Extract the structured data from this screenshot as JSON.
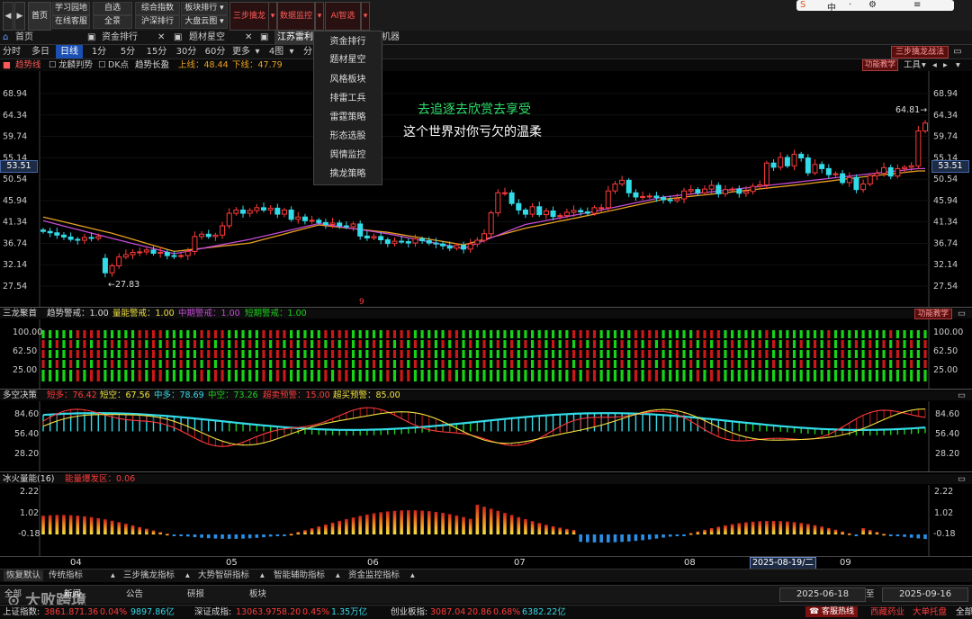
{
  "topbar": {
    "home_label": "首页",
    "buttons": [
      "学习园地",
      "自选",
      "综合指数",
      "板块排行",
      "在线客服",
      "全景",
      "沪深排行",
      "大盘云图"
    ],
    "three_step": "三步擒龙",
    "data_monitor": "数据监控",
    "ai_pick": "AI智选",
    "ime": [
      "中",
      "·",
      "⚙",
      "≡"
    ]
  },
  "tabs": [
    "首页",
    "资金排行",
    "题材星空",
    "江苏雷利",
    "机器"
  ],
  "menu_items": [
    "资金排行",
    "题材星空",
    "风格板块",
    "排雷工兵",
    "雷霆策略",
    "形态选股",
    "舆情监控",
    "擒龙策略"
  ],
  "right_badge": "三步擒龙战法",
  "periods": [
    "分时",
    "多日",
    "日线",
    "1分",
    "5分",
    "15分",
    "30分",
    "60分",
    "更多",
    "4图",
    "分"
  ],
  "func_teach": "功能教学",
  "tools": "工具",
  "main_legend": {
    "items": [
      "趋势线",
      "龙麟判势",
      "DK点",
      "趋势长盈"
    ],
    "upper_label": "上线：48.44",
    "lower_label": "下线：47.79"
  },
  "overlay_text": [
    "去追逐去欣赏去享受",
    "这个世界对你亏欠的温柔"
  ],
  "price_axis": [
    "68.94",
    "64.34",
    "59.74",
    "55.14",
    "50.54",
    "45.94",
    "41.34",
    "36.74",
    "32.14",
    "27.54"
  ],
  "current_price": "53.51",
  "high_marker": "64.81",
  "low_marker": "27.83",
  "cursor_mark": "9",
  "sanlong": {
    "title": "三龙聚首",
    "items": [
      "趋势警戒：1.00",
      "量能警戒：1.00",
      "中期警戒：1.00",
      "短期警戒：1.00"
    ],
    "axis": [
      "100.00",
      "62.50",
      "25.00"
    ],
    "func_teach": "功能教学"
  },
  "duokong": {
    "title": "多空决策",
    "items": [
      "短多：76.42",
      "短空：67.56",
      "中多：78.69",
      "中空：73.26",
      "超卖预警：15.00",
      "超买预警：85.00"
    ],
    "axis": [
      "84.60",
      "56.40",
      "28.20"
    ]
  },
  "bingh": {
    "title": "冰火量能(16)",
    "sub": "能量爆发区：0.06",
    "axis": [
      "2.22",
      "1.02",
      "-0.18"
    ]
  },
  "x_axis": [
    "04",
    "05",
    "06",
    "07",
    "08",
    "09"
  ],
  "cursor_date": "2025-08-19/二",
  "indicator_tabs": [
    "恢复默认",
    "传统指标",
    "三步擒龙指标",
    "大势智研指标",
    "智能辅助指标",
    "资金监控指标"
  ],
  "news_tabs": [
    "全部",
    "新闻",
    "公告",
    "研报",
    "板块"
  ],
  "date_from": "2025-06-18",
  "date_to_label": "至",
  "date_to": "2025-09-16",
  "logo_text": "大败跨境",
  "status": {
    "sh": {
      "name": "上证指数:",
      "val": "3861.87",
      "chg": "1.36",
      "pct": "0.04%",
      "amt": "9897.86亿"
    },
    "sz": {
      "name": "深证成指:",
      "val": "13063.97",
      "chg": "58.20",
      "pct": "0.45%",
      "amt": "1.35万亿"
    },
    "cy": {
      "name": "创业板指:",
      "val": "3087.04",
      "chg": "20.86",
      "pct": "0.68%",
      "amt": "6382.22亿"
    },
    "hotline": "客服热线",
    "stock1": "西藏药业",
    "stock2": "大单托盘",
    "all": "全部"
  },
  "colors": {
    "up": "#ff3b3b",
    "down": "#33dbe8",
    "purple": "#c44bd6",
    "orange": "#e8a020",
    "green": "#1cd11c",
    "yellow": "#f0e040"
  },
  "chart_data": {
    "type": "candlestick",
    "ylim": [
      26,
      70
    ],
    "note_series": [
      "candles",
      "ma_purple",
      "ma_orange"
    ],
    "candles_close": [
      39.3,
      39.0,
      38.5,
      38.1,
      37.6,
      37.4,
      38.0,
      37.8,
      38.2,
      30.4,
      31.9,
      33.8,
      34.3,
      34.8,
      34.9,
      35.3,
      34.6,
      34.8,
      34.1,
      34.0,
      34.1,
      35.0,
      38.2,
      38.7,
      38.2,
      38.5,
      40.5,
      43.2,
      43.9,
      43.2,
      43.8,
      44.4,
      43.9,
      44.3,
      43.0,
      43.9,
      41.9,
      42.4,
      41.6,
      41.7,
      41.2,
      40.8,
      41.1,
      40.5,
      40.3,
      40.9,
      38.3,
      37.9,
      38.2,
      37.5,
      36.7,
      37.2,
      37.1,
      36.8,
      37.7,
      37.3,
      36.8,
      36.6,
      36.2,
      35.7,
      36.3,
      35.5,
      36.6,
      37.4,
      38.8,
      43.3,
      47.6,
      47.6,
      45.3,
      43.9,
      43.0,
      44.6,
      42.9,
      43.7,
      42.5,
      42.7,
      43.4,
      43.8,
      43.5,
      43.2,
      44.4,
      44.4,
      48.0,
      49.5,
      50.3,
      47.6,
      46.7,
      46.8,
      46.9,
      46.6,
      46.1,
      45.9,
      46.3,
      48.0,
      48.3,
      47.6,
      48.4,
      49.2,
      47.4,
      48.3,
      48.4,
      47.5,
      47.9,
      49.0,
      49.3,
      54.0,
      53.1,
      55.2,
      53.4,
      55.9,
      55.1,
      51.9,
      53.7,
      52.8,
      51.5,
      51.7,
      49.8,
      50.9,
      48.3,
      49.5,
      51.3,
      51.8,
      53.0,
      51.2,
      52.8,
      53.1,
      53.4,
      60.9,
      62.6
    ],
    "ma_purple": [
      [
        0,
        41.6
      ],
      [
        10,
        37.8
      ],
      [
        19,
        34.5
      ],
      [
        30,
        37.6
      ],
      [
        40,
        41.0
      ],
      [
        50,
        38.8
      ],
      [
        61,
        35.6
      ],
      [
        70,
        40.8
      ],
      [
        80,
        43.6
      ],
      [
        90,
        46.7
      ],
      [
        100,
        48.3
      ],
      [
        110,
        50.0
      ],
      [
        120,
        51.7
      ],
      [
        127,
        52.8
      ]
    ],
    "ma_orange": [
      [
        0,
        42.4
      ],
      [
        10,
        38.9
      ],
      [
        19,
        35.0
      ],
      [
        30,
        36.8
      ],
      [
        40,
        40.7
      ],
      [
        50,
        39.1
      ],
      [
        61,
        36.4
      ],
      [
        70,
        40.0
      ],
      [
        80,
        43.0
      ],
      [
        90,
        46.2
      ],
      [
        100,
        47.8
      ],
      [
        110,
        49.4
      ],
      [
        120,
        51.2
      ],
      [
        127,
        52.3
      ]
    ]
  }
}
